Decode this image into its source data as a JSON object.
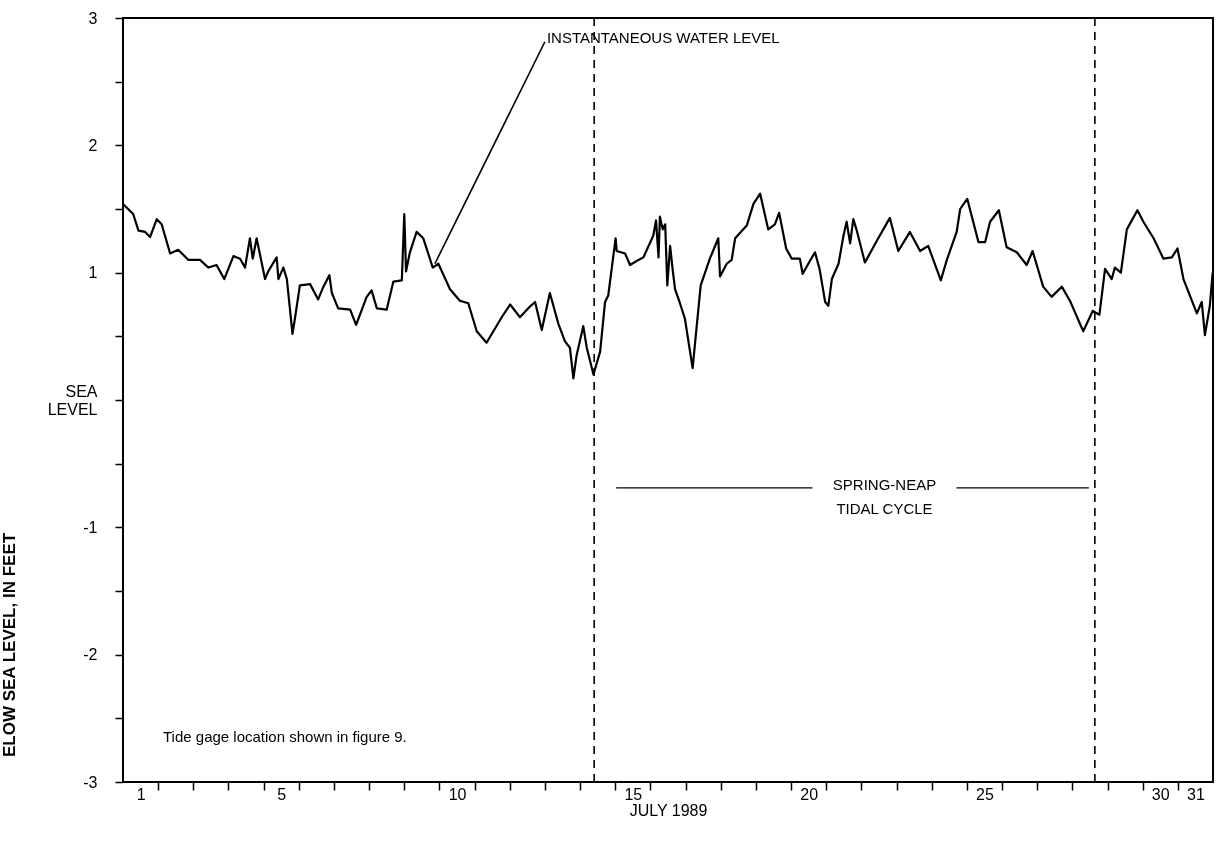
{
  "chart_data": {
    "type": "line",
    "xlabel": "JULY 1989",
    "ylabel": "ELOW SEA LEVEL, IN FEET",
    "xlim": [
      1,
      32
    ],
    "ylim": [
      -3,
      3
    ],
    "xticks": [
      {
        "value": 1.5,
        "label": "1"
      },
      {
        "value": 2,
        "label": null
      },
      {
        "value": 3,
        "label": null
      },
      {
        "value": 4,
        "label": null
      },
      {
        "value": 5,
        "label": null
      },
      {
        "value": 5.5,
        "label": "5"
      },
      {
        "value": 6,
        "label": null
      },
      {
        "value": 7,
        "label": null
      },
      {
        "value": 8,
        "label": null
      },
      {
        "value": 9,
        "label": null
      },
      {
        "value": 10,
        "label": null
      },
      {
        "value": 10.5,
        "label": "10"
      },
      {
        "value": 11,
        "label": null
      },
      {
        "value": 12,
        "label": null
      },
      {
        "value": 13,
        "label": null
      },
      {
        "value": 14,
        "label": null
      },
      {
        "value": 15,
        "label": null
      },
      {
        "value": 15.5,
        "label": "15"
      },
      {
        "value": 16,
        "label": null
      },
      {
        "value": 17,
        "label": null
      },
      {
        "value": 18,
        "label": null
      },
      {
        "value": 19,
        "label": null
      },
      {
        "value": 20,
        "label": null
      },
      {
        "value": 20.5,
        "label": "20"
      },
      {
        "value": 21,
        "label": null
      },
      {
        "value": 22,
        "label": null
      },
      {
        "value": 23,
        "label": null
      },
      {
        "value": 24,
        "label": null
      },
      {
        "value": 25,
        "label": null
      },
      {
        "value": 25.5,
        "label": "25"
      },
      {
        "value": 26,
        "label": null
      },
      {
        "value": 27,
        "label": null
      },
      {
        "value": 28,
        "label": null
      },
      {
        "value": 29,
        "label": null
      },
      {
        "value": 30,
        "label": null
      },
      {
        "value": 30.5,
        "label": "30"
      },
      {
        "value": 31,
        "label": null
      },
      {
        "value": 31.5,
        "label": "31"
      }
    ],
    "yticks": [
      -3,
      {
        "value": -2.5,
        "label": null
      },
      -2,
      {
        "value": -1.5,
        "label": null
      },
      -1,
      {
        "value": -0.5,
        "label": null
      },
      {
        "value": 0,
        "label": "SEA\nLEVEL"
      },
      {
        "value": 0.5,
        "label": null
      },
      1,
      {
        "value": 1.5,
        "label": null
      },
      2,
      {
        "value": 2.5,
        "label": null
      },
      3
    ],
    "marker": "none",
    "line_style": "solid",
    "series": [
      {
        "color": "#000000",
        "x": [
          1.0,
          1.29,
          1.44,
          1.63,
          1.77,
          1.96,
          2.1,
          2.34,
          2.57,
          2.86,
          3.19,
          3.43,
          3.66,
          3.88,
          4.14,
          4.33,
          4.47,
          4.61,
          4.69,
          4.8,
          5.04,
          5.13,
          5.37,
          5.42,
          5.56,
          5.66,
          5.82,
          5.89,
          6.03,
          6.32,
          6.55,
          6.7,
          6.87,
          6.94,
          7.12,
          7.46,
          7.63,
          7.93,
          8.07,
          8.22,
          8.5,
          8.69,
          8.93,
          9.0,
          9.05,
          9.16,
          9.35,
          9.54,
          9.81,
          9.97,
          10.3,
          10.58,
          10.82,
          11.06,
          11.34,
          11.77,
          12.01,
          12.29,
          12.56,
          12.72,
          12.91,
          13.14,
          13.38,
          13.57,
          13.71,
          13.81,
          13.9,
          14.09,
          14.19,
          14.38,
          14.57,
          14.71,
          14.8,
          15.01,
          15.04,
          15.28,
          15.42,
          15.66,
          15.8,
          16.08,
          16.16,
          16.23,
          16.27,
          16.35,
          16.42,
          16.48,
          16.56,
          16.63,
          16.7,
          16.84,
          16.98,
          17.2,
          17.43,
          17.69,
          17.93,
          17.98,
          18.17,
          18.31,
          18.41,
          18.74,
          18.93,
          19.12,
          19.35,
          19.54,
          19.66,
          19.86,
          20.02,
          20.25,
          20.33,
          20.49,
          20.68,
          20.81,
          20.97,
          21.06,
          21.16,
          21.35,
          21.49,
          21.58,
          21.68,
          21.77,
          21.87,
          22.1,
          22.44,
          22.81,
          23.05,
          23.38,
          23.67,
          23.9,
          24.26,
          24.43,
          24.71,
          24.81,
          25.01,
          25.33,
          25.52,
          25.66,
          25.91,
          26.13,
          26.42,
          26.7,
          26.87,
          27.17,
          27.41,
          27.7,
          27.93,
          28.31,
          28.58,
          28.77,
          28.93,
          29.12,
          29.21,
          29.38,
          29.55,
          29.85,
          30.02,
          30.31,
          30.59,
          30.83,
          30.99,
          31.16,
          31.54,
          31.68,
          31.77,
          31.91,
          31.99
        ],
        "values": [
          1.54,
          1.46,
          1.33,
          1.32,
          1.28,
          1.42,
          1.38,
          1.15,
          1.18,
          1.1,
          1.1,
          1.04,
          1.06,
          0.95,
          1.13,
          1.11,
          1.04,
          1.27,
          1.11,
          1.27,
          0.95,
          1.01,
          1.12,
          0.95,
          1.04,
          0.95,
          0.52,
          0.64,
          0.9,
          0.91,
          0.79,
          0.89,
          0.98,
          0.84,
          0.72,
          0.71,
          0.59,
          0.81,
          0.86,
          0.72,
          0.71,
          0.93,
          0.94,
          1.46,
          1.01,
          1.16,
          1.32,
          1.27,
          1.04,
          1.07,
          0.87,
          0.78,
          0.76,
          0.54,
          0.45,
          0.65,
          0.75,
          0.65,
          0.73,
          0.77,
          0.55,
          0.84,
          0.6,
          0.46,
          0.41,
          0.17,
          0.35,
          0.58,
          0.41,
          0.2,
          0.38,
          0.77,
          0.82,
          1.27,
          1.17,
          1.15,
          1.06,
          1.1,
          1.12,
          1.29,
          1.41,
          1.12,
          1.44,
          1.34,
          1.38,
          0.9,
          1.21,
          1.03,
          0.87,
          0.76,
          0.64,
          0.25,
          0.9,
          1.11,
          1.27,
          0.97,
          1.07,
          1.1,
          1.27,
          1.37,
          1.54,
          1.62,
          1.34,
          1.38,
          1.47,
          1.19,
          1.11,
          1.11,
          0.99,
          1.07,
          1.16,
          1.03,
          0.77,
          0.74,
          0.95,
          1.07,
          1.29,
          1.4,
          1.23,
          1.42,
          1.33,
          1.08,
          1.25,
          1.43,
          1.17,
          1.32,
          1.17,
          1.21,
          0.94,
          1.1,
          1.32,
          1.5,
          1.58,
          1.24,
          1.24,
          1.4,
          1.49,
          1.2,
          1.16,
          1.06,
          1.17,
          0.89,
          0.81,
          0.89,
          0.78,
          0.54,
          0.7,
          0.67,
          1.03,
          0.95,
          1.04,
          1.0,
          1.34,
          1.49,
          1.4,
          1.27,
          1.11,
          1.12,
          1.19,
          0.95,
          0.68,
          0.77,
          0.51,
          0.74,
          1.0
        ]
      }
    ],
    "ref_lines": [
      {
        "axis": "x",
        "value": 14.4,
        "color": "#000000",
        "line_style": "dashed"
      },
      {
        "axis": "x",
        "value": 28.64,
        "color": "#000000",
        "line_style": "dashed"
      }
    ],
    "annotations": [
      {
        "text": "INSTANTANEOUS WATER LEVEL",
        "x": 9.87,
        "y": 1.07
      },
      "SPRING-NEAP\nTIDAL CYCLE",
      "Tide gage location shown in figure 9."
    ]
  }
}
